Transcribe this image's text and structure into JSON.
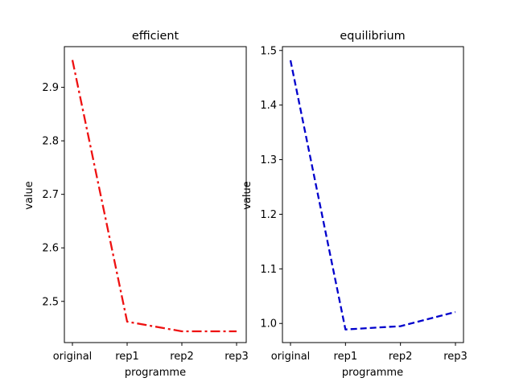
{
  "chart_data": [
    {
      "type": "line",
      "title": "efficient",
      "xlabel": "programme",
      "ylabel": "value",
      "categories": [
        "original",
        "rep1",
        "rep2",
        "rep3"
      ],
      "series": [
        {
          "values": [
            2.951,
            2.462,
            2.444,
            2.444
          ],
          "color": "#ee1111",
          "linestyle": "dashdot"
        }
      ],
      "ylim": [
        2.423,
        2.976
      ],
      "yticks": [
        2.5,
        2.6,
        2.7,
        2.8,
        2.9
      ],
      "ytick_labels": [
        "2.5",
        "2.6",
        "2.7",
        "2.8",
        "2.9"
      ],
      "grid": false
    },
    {
      "type": "line",
      "title": "equilibrium",
      "xlabel": "programme",
      "ylabel": "value",
      "categories": [
        "original",
        "rep1",
        "rep2",
        "rep3"
      ],
      "series": [
        {
          "values": [
            1.482,
            0.989,
            0.995,
            1.021
          ],
          "color": "#0000cc",
          "linestyle": "dashed"
        }
      ],
      "ylim": [
        0.965,
        1.507
      ],
      "yticks": [
        1.0,
        1.1,
        1.2,
        1.3,
        1.4,
        1.5
      ],
      "ytick_labels": [
        "1.0",
        "1.1",
        "1.2",
        "1.3",
        "1.4",
        "1.5"
      ],
      "grid": false
    }
  ]
}
